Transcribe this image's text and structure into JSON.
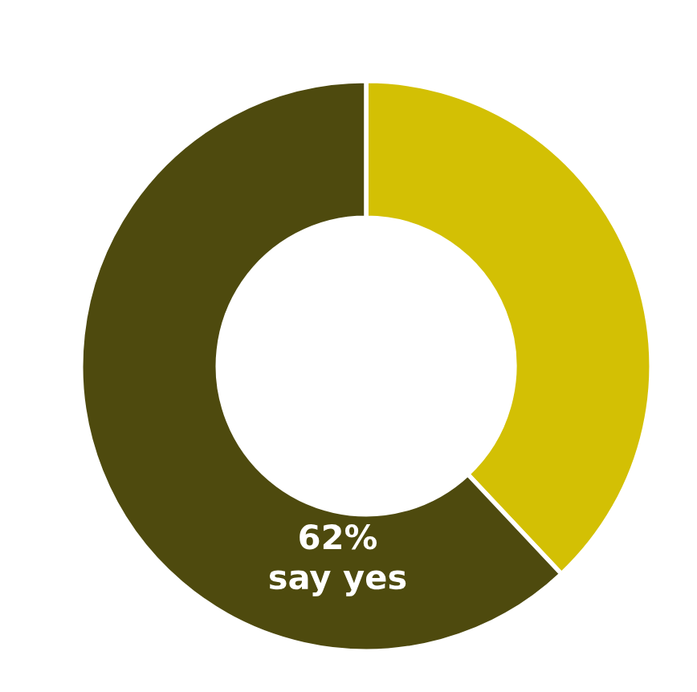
{
  "chart_data": {
    "type": "donut",
    "categories": [
      null,
      null
    ],
    "values": [
      38,
      62
    ],
    "colors": [
      "#d3c004",
      "#4e4a0e"
    ],
    "value_labels": [
      null,
      "62%\nsay yes"
    ]
  }
}
